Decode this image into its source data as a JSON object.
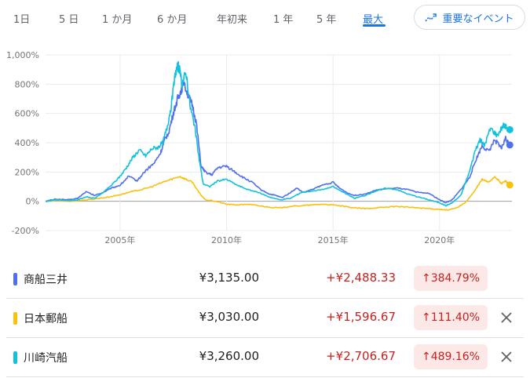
{
  "tabs": [
    {
      "label": "1日",
      "active": false
    },
    {
      "label": "5 日",
      "active": false
    },
    {
      "label": "1 か月",
      "active": false
    },
    {
      "label": "6 か月",
      "active": false
    },
    {
      "label": "年初来",
      "active": false
    },
    {
      "label": "1 年",
      "active": false
    },
    {
      "label": "5 年",
      "active": false
    },
    {
      "label": "最大",
      "active": true
    }
  ],
  "events_button": {
    "label": "重要なイベント",
    "icon": "trend-icon"
  },
  "colors": {
    "accent": "#1a73e8",
    "series1": "#4f6ff0",
    "series2": "#f9c00d",
    "series3": "#12c2dd",
    "negative": "#c5221f",
    "negative_bg": "#fce8e6"
  },
  "chart_data": {
    "type": "line",
    "y_unit": "%",
    "ylim": [
      -200,
      1000
    ],
    "y_ticks": [
      -200,
      0,
      200,
      400,
      600,
      800,
      1000
    ],
    "y_tick_labels": [
      "-200%",
      "0%",
      "200%",
      "400%",
      "600%",
      "800%",
      "1,000%"
    ],
    "xlim": [
      2001.5,
      2023.4
    ],
    "x_ticks": [
      2005,
      2010,
      2015,
      2020
    ],
    "x_tick_labels": [
      "2005年",
      "2010年",
      "2015年",
      "2020年"
    ],
    "grid": true,
    "series": [
      {
        "name": "商船三井",
        "color": "#4f6ff0",
        "points": [
          [
            2001.5,
            0
          ],
          [
            2002,
            15
          ],
          [
            2002.6,
            10
          ],
          [
            2003,
            20
          ],
          [
            2003.4,
            65
          ],
          [
            2003.8,
            40
          ],
          [
            2004.2,
            60
          ],
          [
            2004.6,
            90
          ],
          [
            2005,
            110
          ],
          [
            2005.4,
            170
          ],
          [
            2005.8,
            140
          ],
          [
            2006.2,
            210
          ],
          [
            2006.6,
            260
          ],
          [
            2006.9,
            330
          ],
          [
            2007.1,
            420
          ],
          [
            2007.3,
            480
          ],
          [
            2007.5,
            600
          ],
          [
            2007.7,
            700
          ],
          [
            2007.85,
            750
          ],
          [
            2008.0,
            820
          ],
          [
            2008.2,
            720
          ],
          [
            2008.4,
            650
          ],
          [
            2008.6,
            520
          ],
          [
            2008.8,
            240
          ],
          [
            2009,
            200
          ],
          [
            2009.3,
            180
          ],
          [
            2009.6,
            230
          ],
          [
            2010,
            240
          ],
          [
            2010.4,
            200
          ],
          [
            2010.8,
            160
          ],
          [
            2011.2,
            130
          ],
          [
            2011.6,
            80
          ],
          [
            2012,
            50
          ],
          [
            2012.3,
            40
          ],
          [
            2012.6,
            25
          ],
          [
            2013,
            60
          ],
          [
            2013.3,
            90
          ],
          [
            2013.6,
            60
          ],
          [
            2014,
            80
          ],
          [
            2014.5,
            110
          ],
          [
            2015,
            130
          ],
          [
            2015.3,
            90
          ],
          [
            2015.7,
            55
          ],
          [
            2016.0,
            40
          ],
          [
            2016.5,
            50
          ],
          [
            2017,
            75
          ],
          [
            2017.5,
            85
          ],
          [
            2018,
            90
          ],
          [
            2018.5,
            80
          ],
          [
            2019,
            60
          ],
          [
            2019.5,
            55
          ],
          [
            2020,
            10
          ],
          [
            2020.3,
            -10
          ],
          [
            2020.6,
            10
          ],
          [
            2021,
            80
          ],
          [
            2021.4,
            160
          ],
          [
            2021.7,
            280
          ],
          [
            2022,
            380
          ],
          [
            2022.3,
            340
          ],
          [
            2022.6,
            420
          ],
          [
            2022.9,
            360
          ],
          [
            2023.1,
            430
          ],
          [
            2023.3,
            384.79
          ]
        ]
      },
      {
        "name": "日本郵船",
        "color": "#f9c00d",
        "points": [
          [
            2001.5,
            0
          ],
          [
            2002,
            5
          ],
          [
            2002.6,
            0
          ],
          [
            2003,
            5
          ],
          [
            2003.5,
            10
          ],
          [
            2004,
            20
          ],
          [
            2004.5,
            30
          ],
          [
            2005,
            45
          ],
          [
            2005.5,
            65
          ],
          [
            2006,
            80
          ],
          [
            2006.5,
            100
          ],
          [
            2007,
            130
          ],
          [
            2007.4,
            150
          ],
          [
            2007.8,
            170
          ],
          [
            2008.1,
            150
          ],
          [
            2008.4,
            130
          ],
          [
            2008.7,
            60
          ],
          [
            2009,
            10
          ],
          [
            2009.5,
            0
          ],
          [
            2010,
            -20
          ],
          [
            2010.5,
            -25
          ],
          [
            2011,
            -20
          ],
          [
            2011.5,
            -30
          ],
          [
            2012,
            -40
          ],
          [
            2012.5,
            -45
          ],
          [
            2013,
            -35
          ],
          [
            2013.5,
            -30
          ],
          [
            2014,
            -25
          ],
          [
            2014.5,
            -20
          ],
          [
            2015,
            -25
          ],
          [
            2015.5,
            -35
          ],
          [
            2016,
            -45
          ],
          [
            2016.5,
            -50
          ],
          [
            2017,
            -45
          ],
          [
            2017.5,
            -40
          ],
          [
            2018,
            -35
          ],
          [
            2018.5,
            -40
          ],
          [
            2019,
            -45
          ],
          [
            2019.5,
            -50
          ],
          [
            2020,
            -55
          ],
          [
            2020.4,
            -60
          ],
          [
            2020.8,
            -45
          ],
          [
            2021.2,
            -10
          ],
          [
            2021.6,
            60
          ],
          [
            2022,
            150
          ],
          [
            2022.3,
            130
          ],
          [
            2022.6,
            170
          ],
          [
            2022.9,
            120
          ],
          [
            2023.1,
            140
          ],
          [
            2023.3,
            111.4
          ]
        ]
      },
      {
        "name": "川崎汽船",
        "color": "#12c2dd",
        "points": [
          [
            2001.5,
            0
          ],
          [
            2002,
            10
          ],
          [
            2002.6,
            5
          ],
          [
            2003,
            10
          ],
          [
            2003.4,
            30
          ],
          [
            2003.8,
            20
          ],
          [
            2004.2,
            60
          ],
          [
            2004.6,
            110
          ],
          [
            2005,
            170
          ],
          [
            2005.3,
            230
          ],
          [
            2005.6,
            300
          ],
          [
            2005.9,
            350
          ],
          [
            2006.2,
            310
          ],
          [
            2006.5,
            360
          ],
          [
            2006.8,
            370
          ],
          [
            2007.0,
            400
          ],
          [
            2007.2,
            500
          ],
          [
            2007.4,
            650
          ],
          [
            2007.6,
            880
          ],
          [
            2007.75,
            930
          ],
          [
            2007.9,
            800
          ],
          [
            2008.1,
            880
          ],
          [
            2008.3,
            640
          ],
          [
            2008.5,
            520
          ],
          [
            2008.7,
            300
          ],
          [
            2008.9,
            120
          ],
          [
            2009.2,
            100
          ],
          [
            2009.6,
            140
          ],
          [
            2010,
            150
          ],
          [
            2010.5,
            110
          ],
          [
            2011,
            80
          ],
          [
            2011.5,
            60
          ],
          [
            2012,
            30
          ],
          [
            2012.5,
            10
          ],
          [
            2013,
            20
          ],
          [
            2013.5,
            60
          ],
          [
            2014,
            70
          ],
          [
            2014.5,
            80
          ],
          [
            2015,
            100
          ],
          [
            2015.5,
            60
          ],
          [
            2016,
            20
          ],
          [
            2016.5,
            40
          ],
          [
            2017,
            70
          ],
          [
            2017.5,
            90
          ],
          [
            2018,
            80
          ],
          [
            2018.5,
            50
          ],
          [
            2019,
            30
          ],
          [
            2019.5,
            10
          ],
          [
            2020,
            -10
          ],
          [
            2020.3,
            -30
          ],
          [
            2020.6,
            -10
          ],
          [
            2021,
            40
          ],
          [
            2021.4,
            200
          ],
          [
            2021.7,
            360
          ],
          [
            2021.9,
            420
          ],
          [
            2022.1,
            380
          ],
          [
            2022.4,
            500
          ],
          [
            2022.7,
            450
          ],
          [
            2023.0,
            520
          ],
          [
            2023.3,
            489.16
          ]
        ]
      }
    ]
  },
  "rows": [
    {
      "name": "商船三井",
      "price": "¥3,135.00",
      "change": "+¥2,488.33",
      "pct": "↑384.79%",
      "removable": false
    },
    {
      "name": "日本郵船",
      "price": "¥3,030.00",
      "change": "+¥1,596.67",
      "pct": "↑111.40%",
      "removable": true
    },
    {
      "name": "川崎汽船",
      "price": "¥3,260.00",
      "change": "+¥2,706.67",
      "pct": "↑489.16%",
      "removable": true
    }
  ]
}
